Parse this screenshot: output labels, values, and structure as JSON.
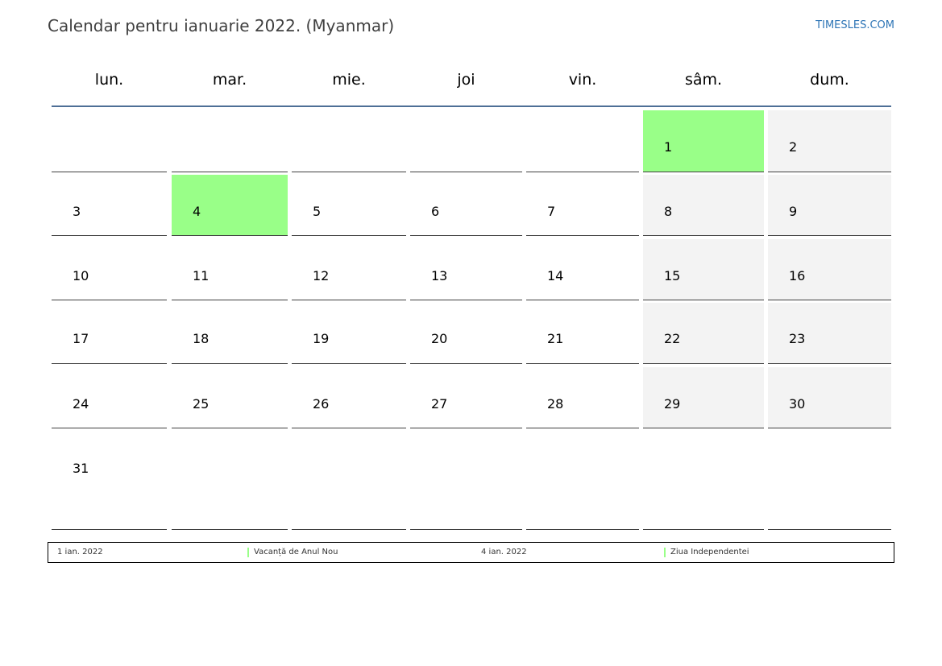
{
  "header": {
    "title": "Calendar pentru ianuarie 2022. (Myanmar)",
    "brand": "TIMESLES.COM"
  },
  "colors": {
    "holiday": "#99ff88",
    "weekend": "#f3f3f3",
    "header_rule": "#4e6f96",
    "brand": "#2e75b6"
  },
  "calendar": {
    "weekdays": [
      "lun.",
      "mar.",
      "mie.",
      "joi",
      "vin.",
      "sâm.",
      "dum."
    ],
    "weeks": [
      [
        {
          "day": "",
          "weekend": false,
          "holiday": false
        },
        {
          "day": "",
          "weekend": false,
          "holiday": false
        },
        {
          "day": "",
          "weekend": false,
          "holiday": false
        },
        {
          "day": "",
          "weekend": false,
          "holiday": false
        },
        {
          "day": "",
          "weekend": false,
          "holiday": false
        },
        {
          "day": "1",
          "weekend": true,
          "holiday": true
        },
        {
          "day": "2",
          "weekend": true,
          "holiday": false
        }
      ],
      [
        {
          "day": "3",
          "weekend": false,
          "holiday": false
        },
        {
          "day": "4",
          "weekend": false,
          "holiday": true
        },
        {
          "day": "5",
          "weekend": false,
          "holiday": false
        },
        {
          "day": "6",
          "weekend": false,
          "holiday": false
        },
        {
          "day": "7",
          "weekend": false,
          "holiday": false
        },
        {
          "day": "8",
          "weekend": true,
          "holiday": false
        },
        {
          "day": "9",
          "weekend": true,
          "holiday": false
        }
      ],
      [
        {
          "day": "10",
          "weekend": false,
          "holiday": false
        },
        {
          "day": "11",
          "weekend": false,
          "holiday": false
        },
        {
          "day": "12",
          "weekend": false,
          "holiday": false
        },
        {
          "day": "13",
          "weekend": false,
          "holiday": false
        },
        {
          "day": "14",
          "weekend": false,
          "holiday": false
        },
        {
          "day": "15",
          "weekend": true,
          "holiday": false
        },
        {
          "day": "16",
          "weekend": true,
          "holiday": false
        }
      ],
      [
        {
          "day": "17",
          "weekend": false,
          "holiday": false
        },
        {
          "day": "18",
          "weekend": false,
          "holiday": false
        },
        {
          "day": "19",
          "weekend": false,
          "holiday": false
        },
        {
          "day": "20",
          "weekend": false,
          "holiday": false
        },
        {
          "day": "21",
          "weekend": false,
          "holiday": false
        },
        {
          "day": "22",
          "weekend": true,
          "holiday": false
        },
        {
          "day": "23",
          "weekend": true,
          "holiday": false
        }
      ],
      [
        {
          "day": "24",
          "weekend": false,
          "holiday": false
        },
        {
          "day": "25",
          "weekend": false,
          "holiday": false
        },
        {
          "day": "26",
          "weekend": false,
          "holiday": false
        },
        {
          "day": "27",
          "weekend": false,
          "holiday": false
        },
        {
          "day": "28",
          "weekend": false,
          "holiday": false
        },
        {
          "day": "29",
          "weekend": true,
          "holiday": false
        },
        {
          "day": "30",
          "weekend": true,
          "holiday": false
        }
      ],
      [
        {
          "day": "31",
          "weekend": false,
          "holiday": false
        },
        {
          "day": "",
          "weekend": false,
          "holiday": false
        },
        {
          "day": "",
          "weekend": false,
          "holiday": false
        },
        {
          "day": "",
          "weekend": false,
          "holiday": false
        },
        {
          "day": "",
          "weekend": false,
          "holiday": false
        },
        {
          "day": "",
          "weekend": false,
          "holiday": false
        },
        {
          "day": "",
          "weekend": false,
          "holiday": false
        }
      ]
    ]
  },
  "legend": {
    "holidays": [
      {
        "date": "1 ian. 2022",
        "name": "Vacanță de Anul Nou"
      },
      {
        "date": "4 ian. 2022",
        "name": "Ziua Independentei"
      }
    ]
  }
}
